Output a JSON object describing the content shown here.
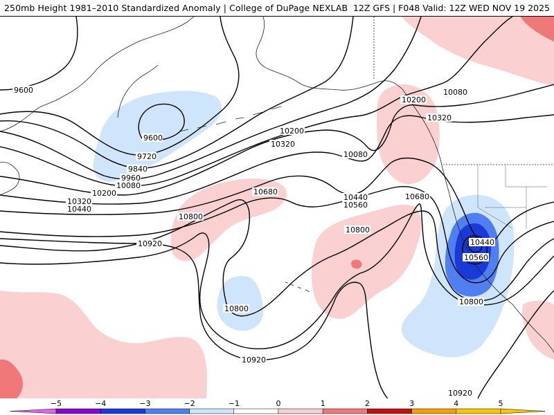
{
  "header": {
    "title_left": "250mb Height 1981–2010 Standardized Anomaly | College of DuPage NEXLAB",
    "title_right": "12Z GFS | F048 Valid: 12Z WED NOV 19 2025"
  },
  "colors": {
    "anom_neg4": "#8a06c8",
    "anom_neg3": "#1a3ad8",
    "anom_neg2": "#4f7ff0",
    "anom_neg1": "#cfe5fb",
    "anom_pos1": "#fbd0d0",
    "anom_pos2": "#f07878",
    "anom_pos3": "#c01010",
    "anom_pos4": "#f5a000"
  },
  "contour_labels": [
    {
      "id": "c9600-west",
      "text": "9600"
    },
    {
      "id": "c9600-low",
      "text": "9600"
    },
    {
      "id": "c9720",
      "text": "9720"
    },
    {
      "id": "c9840",
      "text": "9840"
    },
    {
      "id": "c9960",
      "text": "9960"
    },
    {
      "id": "c10080-w",
      "text": "10080"
    },
    {
      "id": "c10200-w",
      "text": "10200"
    },
    {
      "id": "c10320-w",
      "text": "10320"
    },
    {
      "id": "c10440-w",
      "text": "10440"
    },
    {
      "id": "c10200-mid",
      "text": "10200"
    },
    {
      "id": "c10320-mid",
      "text": "10320"
    },
    {
      "id": "c10080-trough",
      "text": "10080"
    },
    {
      "id": "c10440-mid",
      "text": "10440"
    },
    {
      "id": "c10560-mid",
      "text": "10560"
    },
    {
      "id": "c10680-ridge",
      "text": "10680"
    },
    {
      "id": "c10680-e",
      "text": "10680"
    },
    {
      "id": "c10800-w",
      "text": "10800"
    },
    {
      "id": "c10800-mid",
      "text": "10800"
    },
    {
      "id": "c10800-low",
      "text": "10800"
    },
    {
      "id": "c10800-e",
      "text": "10800"
    },
    {
      "id": "c10920-w",
      "text": "10920"
    },
    {
      "id": "c10920-s",
      "text": "10920"
    },
    {
      "id": "c10920-se",
      "text": "10920"
    },
    {
      "id": "c10080-ne",
      "text": "10080"
    },
    {
      "id": "c10200-ne",
      "text": "10200"
    },
    {
      "id": "c10320-ne",
      "text": "10320"
    },
    {
      "id": "c10440-cut",
      "text": "10440"
    },
    {
      "id": "c10560-cut",
      "text": "10560"
    }
  ],
  "legend": {
    "ticks": [
      "−5",
      "−4",
      "−3",
      "−2",
      "−1",
      "0",
      "1",
      "2",
      "3",
      "4",
      "5"
    ],
    "bins": [
      {
        "color": "#e066f0"
      },
      {
        "color": "#8a06c8"
      },
      {
        "color": "#1a3ad8"
      },
      {
        "color": "#4f7ff0"
      },
      {
        "color": "#cfe5fb"
      },
      {
        "color": "#ffffff"
      },
      {
        "color": "#fbd0d0"
      },
      {
        "color": "#f07878"
      },
      {
        "color": "#c01010"
      },
      {
        "color": "#f5a000"
      },
      {
        "color": "#f5c800"
      }
    ]
  }
}
